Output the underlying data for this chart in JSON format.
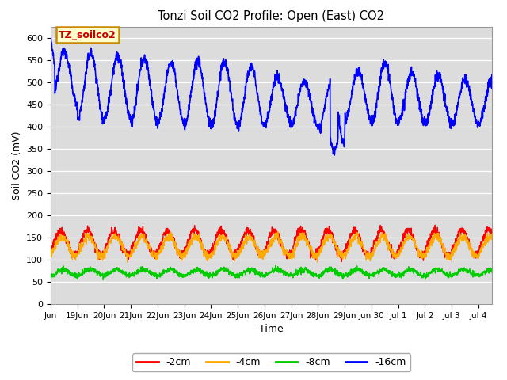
{
  "title": "Tonzi Soil CO2 Profile: Open (East) CO2",
  "ylabel": "Soil CO2 (mV)",
  "xlabel": "Time",
  "ylim": [
    0,
    625
  ],
  "yticks": [
    0,
    50,
    100,
    150,
    200,
    250,
    300,
    350,
    400,
    450,
    500,
    550,
    600
  ],
  "bg_color": "#dcdcdc",
  "fig_color": "#ffffff",
  "legend_label": "TZ_soilco2",
  "legend_bg": "#ffffcc",
  "legend_border": "#cc8800",
  "series": {
    "minus2cm": {
      "label": "-2cm",
      "color": "#ff0000",
      "lw": 1.0
    },
    "minus4cm": {
      "label": "-4cm",
      "color": "#ffaa00",
      "lw": 1.0
    },
    "minus8cm": {
      "label": "-8cm",
      "color": "#00cc00",
      "lw": 1.0
    },
    "minus16cm": {
      "label": "-16cm",
      "color": "#0000ff",
      "lw": 1.2
    }
  },
  "xstart_day": 18.0,
  "xend_day": 34.5,
  "xtick_positions": [
    18,
    19,
    20,
    21,
    22,
    23,
    24,
    25,
    26,
    27,
    28,
    29,
    30,
    31,
    32,
    33,
    34
  ],
  "xtick_labels": [
    "Jun",
    "19Jun",
    "20Jun",
    "21Jun",
    "22Jun",
    "23Jun",
    "24Jun",
    "25Jun",
    "26Jun",
    "27Jun",
    "28Jun",
    "29Jun",
    "Jun 30",
    "Jul 1",
    "Jul 2",
    "Jul 3",
    "Jul 4"
  ],
  "bottom_legend": [
    {
      "label": "-2cm",
      "color": "#ff0000"
    },
    {
      "label": "-4cm",
      "color": "#ffaa00"
    },
    {
      "label": "-8cm",
      "color": "#00cc00"
    },
    {
      "label": "-16cm",
      "color": "#0000ff"
    }
  ]
}
